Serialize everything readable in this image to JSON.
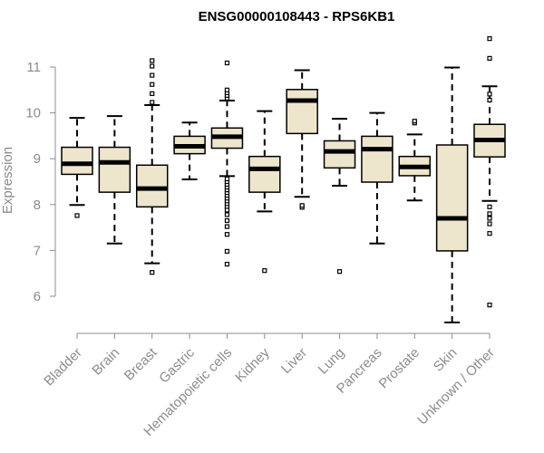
{
  "chart_data": {
    "type": "box",
    "title": "ENSG00000108443 - RPS6KB1",
    "ylabel": "Expression",
    "xlabel": "",
    "ylim": [
      5.3,
      11.7
    ],
    "yticks": [
      6,
      7,
      8,
      9,
      10,
      11
    ],
    "box_fill": "#ede6cc",
    "box_stroke": "#000000",
    "axis_color": "#8c8c8c",
    "categories": [
      "Bladder",
      "Brain",
      "Breast",
      "Gastric",
      "Hematopoietic cells",
      "Kidney",
      "Liver",
      "Lung",
      "Pancreas",
      "Prostate",
      "Skin",
      "Unknown / Other"
    ],
    "boxes": [
      {
        "category": "Bladder",
        "whisker_low": 7.99,
        "q1": 8.66,
        "median": 8.89,
        "q3": 9.25,
        "whisker_high": 9.89,
        "outliers": [
          7.76
        ]
      },
      {
        "category": "Brain",
        "whisker_low": 7.15,
        "q1": 8.27,
        "median": 8.92,
        "q3": 9.25,
        "whisker_high": 9.93,
        "outliers": []
      },
      {
        "category": "Breast",
        "whisker_low": 6.72,
        "q1": 7.95,
        "median": 8.35,
        "q3": 8.86,
        "whisker_high": 10.17,
        "outliers": [
          6.52,
          10.23,
          10.42,
          10.62,
          10.82,
          11.02,
          11.14
        ]
      },
      {
        "category": "Gastric",
        "whisker_low": 8.55,
        "q1": 9.11,
        "median": 9.27,
        "q3": 9.49,
        "whisker_high": 9.79,
        "outliers": []
      },
      {
        "category": "Hematopoietic cells",
        "whisker_low": 8.62,
        "q1": 9.23,
        "median": 9.48,
        "q3": 9.67,
        "whisker_high": 10.27,
        "outliers": [
          6.7,
          6.98,
          7.35,
          7.52,
          7.65,
          7.78,
          7.88,
          7.96,
          8.02,
          8.08,
          8.14,
          8.2,
          8.26,
          8.32,
          8.38,
          8.44,
          8.5,
          8.56,
          10.32,
          10.38,
          10.44,
          10.5,
          11.09
        ]
      },
      {
        "category": "Kidney",
        "whisker_low": 7.85,
        "q1": 8.27,
        "median": 8.78,
        "q3": 9.05,
        "whisker_high": 10.04,
        "outliers": [
          6.56
        ]
      },
      {
        "category": "Liver",
        "whisker_low": 8.17,
        "q1": 9.55,
        "median": 10.27,
        "q3": 10.51,
        "whisker_high": 10.93,
        "outliers": [
          7.94,
          7.98
        ]
      },
      {
        "category": "Lung",
        "whisker_low": 8.41,
        "q1": 8.8,
        "median": 9.16,
        "q3": 9.39,
        "whisker_high": 9.87,
        "outliers": [
          6.54
        ]
      },
      {
        "category": "Pancreas",
        "whisker_low": 7.15,
        "q1": 8.49,
        "median": 9.21,
        "q3": 9.49,
        "whisker_high": 10.0,
        "outliers": []
      },
      {
        "category": "Prostate",
        "whisker_low": 8.09,
        "q1": 8.63,
        "median": 8.82,
        "q3": 9.05,
        "whisker_high": 9.53,
        "outliers": [
          9.78,
          9.82
        ]
      },
      {
        "category": "Skin",
        "whisker_low": 5.43,
        "q1": 6.99,
        "median": 7.7,
        "q3": 9.3,
        "whisker_high": 10.99,
        "outliers": []
      },
      {
        "category": "Unknown / Other",
        "whisker_low": 8.08,
        "q1": 9.04,
        "median": 9.41,
        "q3": 9.75,
        "whisker_high": 10.58,
        "outliers": [
          5.81,
          7.37,
          7.58,
          7.7,
          7.8,
          7.95,
          10.28,
          10.41,
          11.19,
          11.62
        ]
      }
    ]
  }
}
